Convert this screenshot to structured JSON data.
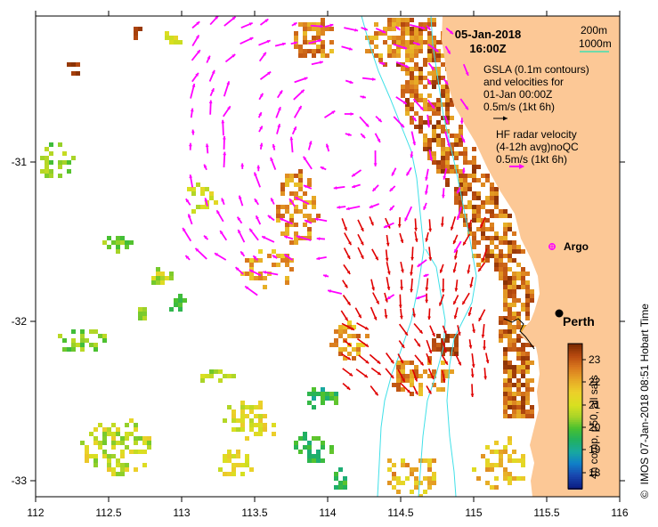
{
  "map": {
    "date": "05-Jan-2018",
    "time": "16:00Z",
    "depth_legend": [
      "200m",
      "1000m"
    ],
    "gsla_legend": [
      "GSLA (0.1m contours)",
      "and velocities for",
      "01-Jan 00:00Z",
      "0.5m/s (1kt 6h)"
    ],
    "hf_legend": [
      "HF radar velocity",
      "(4-12h avg)noQC",
      "0.5m/s (1kt 6h)"
    ],
    "argo_label": "Argo",
    "city_label": "Perth",
    "colorbar_label": "4h comp, p50, all sats",
    "colorbar_ticks": [
      "23",
      "22",
      "21",
      "20",
      "19",
      "18"
    ],
    "credit": "IMOS 07-Jan-2018 08:51 Hobart Time",
    "copyright_symbol": "©",
    "x_ticks": [
      "112",
      "112.5",
      "113",
      "113.5",
      "114",
      "114.5",
      "115",
      "115.5",
      "116"
    ],
    "y_ticks": [
      "-31",
      "-32",
      "-33"
    ],
    "colors": {
      "land": "#fcc896",
      "depth_200": "#40e0e8",
      "depth_1000": "#40e0b0",
      "hf_arrow": "#ff00ff",
      "gsla_arrow": "#e00000",
      "frame": "#000000"
    }
  }
}
